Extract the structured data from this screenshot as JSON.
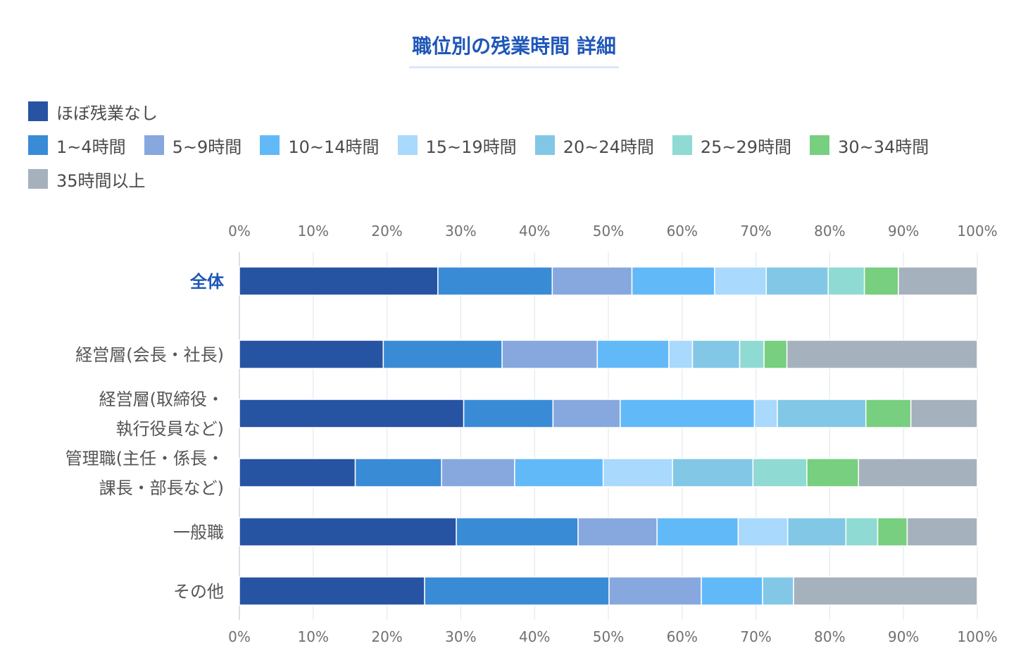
{
  "chart_data": {
    "type": "bar",
    "orientation": "horizontal",
    "stacked": true,
    "title": "職位別の残業時間 詳細",
    "legend_position": "top-left",
    "grid": true,
    "xlim": [
      0,
      100
    ],
    "ticks": [
      "0%",
      "10%",
      "20%",
      "30%",
      "40%",
      "50%",
      "60%",
      "70%",
      "80%",
      "90%",
      "100%"
    ],
    "categories": [
      {
        "lines": [
          "全体"
        ],
        "highlight": true
      },
      {
        "lines": [
          "経営層(会長・社長)"
        ],
        "highlight": false
      },
      {
        "lines": [
          "経営層(取締役・",
          "執行役員など)"
        ],
        "highlight": false
      },
      {
        "lines": [
          "管理職(主任・係長・",
          "課長・部長など)"
        ],
        "highlight": false
      },
      {
        "lines": [
          "一般職"
        ],
        "highlight": false
      },
      {
        "lines": [
          "その他"
        ],
        "highlight": false
      }
    ],
    "series": [
      {
        "name": "ほぼ残業なし",
        "color": "#2753a3",
        "values": [
          26.9,
          19.5,
          30.4,
          15.7,
          29.4,
          25.1
        ]
      },
      {
        "name": "1~4時間",
        "color": "#3a8bd6",
        "values": [
          15.5,
          16.1,
          12.1,
          11.7,
          16.5,
          25.0
        ]
      },
      {
        "name": "5~9時間",
        "color": "#86a8df",
        "values": [
          10.8,
          12.9,
          9.1,
          9.9,
          10.7,
          12.5
        ]
      },
      {
        "name": "10~14時間",
        "color": "#62b9f8",
        "values": [
          11.2,
          9.7,
          18.2,
          12.0,
          11.0,
          8.3
        ]
      },
      {
        "name": "15~19時間",
        "color": "#a9d9fc",
        "values": [
          7.0,
          3.2,
          3.1,
          9.4,
          6.7,
          0
        ]
      },
      {
        "name": "20~24時間",
        "color": "#82c8e6",
        "values": [
          8.4,
          6.4,
          12.0,
          10.9,
          7.9,
          4.2
        ]
      },
      {
        "name": "25~29時間",
        "color": "#8fdad2",
        "values": [
          4.9,
          3.3,
          0,
          7.3,
          4.3,
          0
        ]
      },
      {
        "name": "30~34時間",
        "color": "#77cf7f",
        "values": [
          4.6,
          3.1,
          6.1,
          7.0,
          4.0,
          0
        ]
      },
      {
        "name": "35時間以上",
        "color": "#a6b1be",
        "values": [
          10.7,
          25.8,
          9.0,
          16.1,
          9.5,
          24.9
        ]
      }
    ]
  }
}
